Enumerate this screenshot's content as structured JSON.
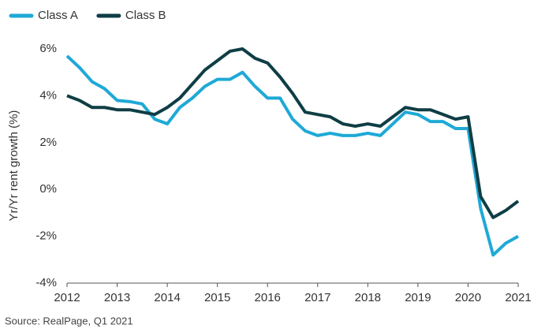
{
  "chart_data": {
    "type": "line",
    "legend": {
      "position": "top-left"
    },
    "y_label": "Yr/Yr rent growth (%)",
    "source": "Source: RealPage, Q1 2021",
    "x": [
      2012,
      2012.25,
      2012.5,
      2012.75,
      2013,
      2013.25,
      2013.5,
      2013.75,
      2014,
      2014.25,
      2014.5,
      2014.75,
      2015,
      2015.25,
      2015.5,
      2015.75,
      2016,
      2016.25,
      2016.5,
      2016.75,
      2017,
      2017.25,
      2017.5,
      2017.75,
      2018,
      2018.25,
      2018.5,
      2018.75,
      2019,
      2019.25,
      2019.5,
      2019.75,
      2020,
      2020.25,
      2020.5,
      2020.75,
      2021
    ],
    "series": [
      {
        "name": "Class A",
        "color": "#1fa9d6",
        "values": [
          5.7,
          5.2,
          4.6,
          4.3,
          3.8,
          3.75,
          3.65,
          3.0,
          2.8,
          3.5,
          3.9,
          4.4,
          4.7,
          4.7,
          5.0,
          4.4,
          3.9,
          3.9,
          3.0,
          2.5,
          2.3,
          2.4,
          2.3,
          2.3,
          2.4,
          2.3,
          2.8,
          3.3,
          3.2,
          2.9,
          2.9,
          2.6,
          2.6,
          -0.8,
          -2.8,
          -2.3,
          -2.0
        ]
      },
      {
        "name": "Class B",
        "color": "#0f3e45",
        "values": [
          4.0,
          3.8,
          3.5,
          3.5,
          3.4,
          3.4,
          3.3,
          3.2,
          3.5,
          3.9,
          4.5,
          5.1,
          5.5,
          5.9,
          6.0,
          5.6,
          5.4,
          4.8,
          4.1,
          3.3,
          3.2,
          3.1,
          2.8,
          2.7,
          2.8,
          2.7,
          3.1,
          3.5,
          3.4,
          3.4,
          3.2,
          3.0,
          3.1,
          -0.3,
          -1.2,
          -0.9,
          -0.5
        ]
      }
    ],
    "xlim": [
      2012,
      2021
    ],
    "xticks": [
      2012,
      2013,
      2014,
      2015,
      2016,
      2017,
      2018,
      2019,
      2020,
      2021
    ],
    "ylim": [
      -4,
      6
    ],
    "yticks": [
      {
        "value": -4,
        "label": "-4%"
      },
      {
        "value": -2,
        "label": "-2%"
      },
      {
        "value": 0,
        "label": "0%"
      },
      {
        "value": 2,
        "label": "2%"
      },
      {
        "value": 4,
        "label": "4%"
      },
      {
        "value": 6,
        "label": "6%"
      }
    ],
    "grid": false
  }
}
